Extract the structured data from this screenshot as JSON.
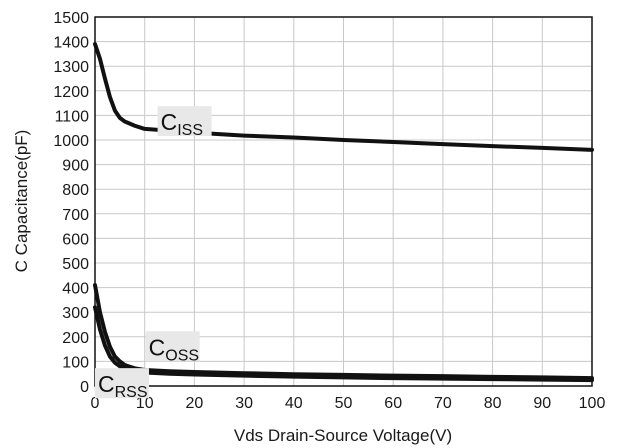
{
  "chart_data": {
    "type": "line",
    "title": "",
    "xlabel": "Vds Drain-Source Voltage(V)",
    "ylabel": "C Capacitance(pF)",
    "xlim": [
      0,
      100
    ],
    "ylim": [
      0,
      1500
    ],
    "x_ticks": [
      0,
      10,
      20,
      30,
      40,
      50,
      60,
      70,
      80,
      90,
      100
    ],
    "y_ticks": [
      0,
      100,
      200,
      300,
      400,
      500,
      600,
      700,
      800,
      900,
      1000,
      1100,
      1200,
      1300,
      1400,
      1500
    ],
    "grid": true,
    "legend": "none",
    "colors": {
      "curve": "#111111",
      "grid": "#c8c8c8",
      "axis": "#111111",
      "label_box": "#e8e8e8"
    },
    "series": [
      {
        "name": "Ciss",
        "label_main": "C",
        "label_sub": "ISS",
        "x": [
          0,
          1,
          2,
          3,
          4,
          5,
          6,
          8,
          10,
          15,
          20,
          30,
          40,
          50,
          60,
          70,
          80,
          90,
          100
        ],
        "y": [
          1390,
          1330,
          1250,
          1175,
          1120,
          1090,
          1075,
          1058,
          1045,
          1038,
          1030,
          1018,
          1010,
          1000,
          992,
          983,
          975,
          968,
          960
        ]
      },
      {
        "name": "Coss",
        "label_main": "C",
        "label_sub": "OSS",
        "x": [
          0,
          1,
          2,
          3,
          4,
          5,
          6,
          8,
          10,
          15,
          20,
          30,
          40,
          50,
          60,
          70,
          80,
          90,
          100
        ],
        "y": [
          410,
          300,
          220,
          160,
          120,
          100,
          85,
          72,
          65,
          60,
          57,
          52,
          48,
          45,
          42,
          40,
          37,
          35,
          32
        ]
      },
      {
        "name": "Crss",
        "label_main": "C",
        "label_sub": "RSS",
        "x": [
          0,
          1,
          2,
          3,
          4,
          5,
          6,
          8,
          10,
          15,
          20,
          30,
          40,
          50,
          60,
          70,
          80,
          90,
          100
        ],
        "y": [
          320,
          230,
          165,
          120,
          95,
          80,
          70,
          60,
          55,
          50,
          47,
          42,
          38,
          35,
          32,
          30,
          28,
          26,
          24
        ]
      }
    ]
  }
}
